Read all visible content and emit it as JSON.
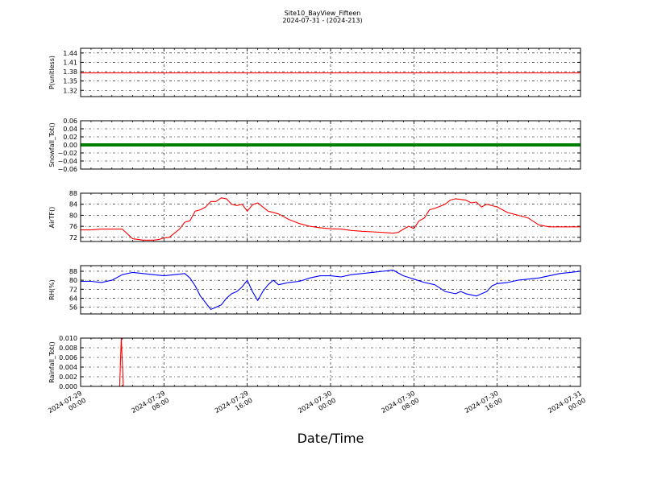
{
  "title": "Site10_BayView_Fifteen",
  "subtitle": "2024-07-31 - (2024-213)",
  "xlabel": "Date/Time",
  "x_ticks": [
    {
      "line1": "2024-07-29",
      "line2": "00:00"
    },
    {
      "line1": "2024-07-29",
      "line2": "08:00"
    },
    {
      "line1": "2024-07-29",
      "line2": "16:00"
    },
    {
      "line1": "2024-07-30",
      "line2": "00:00"
    },
    {
      "line1": "2024-07-30",
      "line2": "08:00"
    },
    {
      "line1": "2024-07-30",
      "line2": "16:00"
    },
    {
      "line1": "2024-07-31",
      "line2": "00:00"
    }
  ],
  "chart_data": [
    {
      "type": "line",
      "ylabel": "P(unitless)",
      "color": "#ff0000",
      "ylim": [
        1.3,
        1.455
      ],
      "yticks": [
        "1.44",
        "1.41",
        "1.38",
        "1.35",
        "1.32"
      ],
      "ytick_values": [
        1.44,
        1.41,
        1.38,
        1.35,
        1.32
      ],
      "x": [
        0,
        48
      ],
      "y": [
        1.376,
        1.376
      ]
    },
    {
      "type": "line",
      "ylabel": "Snowfall_Tot()",
      "color": "#008000",
      "ylim": [
        -0.06,
        0.06
      ],
      "yticks": [
        "0.06",
        "0.04",
        "0.02",
        "0.00",
        "−0.02",
        "−0.04",
        "−0.06"
      ],
      "ytick_values": [
        0.06,
        0.04,
        0.02,
        0.0,
        -0.02,
        -0.04,
        -0.06
      ],
      "x": [
        0,
        48
      ],
      "y": [
        0.0,
        0.0
      ]
    },
    {
      "type": "line",
      "ylabel": "AirTF()",
      "color": "#ff0000",
      "ylim": [
        70.5,
        88
      ],
      "yticks": [
        "88",
        "84",
        "80",
        "76",
        "72"
      ],
      "ytick_values": [
        88,
        84,
        80,
        76,
        72
      ],
      "x": [
        0,
        1,
        2,
        3,
        3.5,
        4,
        5,
        6,
        7,
        7.5,
        8,
        8.5,
        9,
        9.5,
        10,
        10.5,
        11,
        11.5,
        12,
        12.5,
        13,
        13.5,
        14,
        14.5,
        15,
        15.5,
        16,
        16.5,
        17,
        17.5,
        18,
        19,
        20,
        21,
        22,
        23,
        24,
        25,
        26,
        27,
        28,
        29,
        30,
        30.5,
        31,
        31.5,
        32,
        32.5,
        33,
        33.5,
        34,
        35,
        35.5,
        36,
        37,
        37.5,
        38,
        38.5,
        39,
        40,
        41,
        42,
        43,
        44,
        45,
        46,
        47,
        48
      ],
      "y": [
        74.7,
        74.7,
        75,
        75,
        75,
        75,
        71.5,
        71,
        71,
        71.2,
        71.8,
        72,
        73.5,
        75,
        77.5,
        78,
        81.5,
        82,
        83,
        85,
        85,
        86.3,
        86,
        84,
        83.5,
        84,
        81.5,
        83.8,
        84.5,
        83,
        81.5,
        80.5,
        78.5,
        77,
        76,
        75.5,
        75.1,
        75,
        74.5,
        74.2,
        74,
        73.8,
        73.5,
        73.8,
        75,
        76,
        75.2,
        78,
        79,
        82,
        82.5,
        84,
        85.5,
        86,
        85.5,
        84.5,
        84.8,
        83,
        84,
        83,
        81,
        80,
        79,
        76.5,
        75.8,
        75.8,
        75.8,
        75.8
      ]
    },
    {
      "type": "line",
      "ylabel": "RH(%)",
      "color": "#0000ff",
      "ylim": [
        50,
        93
      ],
      "yticks": [
        "88",
        "80",
        "72",
        "64",
        "56"
      ],
      "ytick_values": [
        88,
        80,
        72,
        64,
        56
      ],
      "x": [
        0,
        1,
        2,
        3,
        4,
        5,
        6,
        7,
        8,
        9,
        10,
        10.5,
        11,
        11.5,
        12,
        12.5,
        13,
        13.5,
        14,
        14.5,
        15,
        15.5,
        16,
        16.5,
        17,
        17.5,
        18,
        18.5,
        19,
        19.5,
        20,
        21,
        22,
        23,
        24,
        25,
        26,
        27,
        28,
        29,
        30,
        31,
        32,
        33,
        34,
        35,
        36,
        36.5,
        37,
        37.5,
        38,
        38.5,
        39,
        39.5,
        40,
        41,
        42,
        43,
        44,
        45,
        46,
        47,
        48
      ],
      "y": [
        79,
        79,
        78,
        80,
        85,
        87,
        86,
        85,
        84,
        85,
        86,
        82,
        75,
        66,
        60,
        54,
        56,
        58,
        64,
        68,
        70,
        74,
        80,
        70,
        62,
        70,
        76,
        80,
        76,
        77,
        78,
        79,
        82,
        84,
        84,
        83,
        85,
        86,
        87,
        88,
        89,
        84,
        81,
        78,
        76,
        70,
        68,
        70,
        68,
        67,
        66,
        68,
        70,
        75,
        77,
        78,
        80,
        81,
        82,
        84,
        86,
        87,
        88
      ]
    },
    {
      "type": "line",
      "ylabel": "Rainfall_Tot()",
      "color": "#ff0000",
      "ylim": [
        0,
        0.01
      ],
      "yticks": [
        "0.010",
        "0.008",
        "0.006",
        "0.004",
        "0.002",
        "0.000"
      ],
      "ytick_values": [
        0.01,
        0.008,
        0.006,
        0.004,
        0.002,
        0.0
      ],
      "x": [
        0,
        3.75,
        3.9,
        4.1,
        48
      ],
      "y": [
        0,
        0,
        0.01,
        0,
        0
      ]
    }
  ]
}
